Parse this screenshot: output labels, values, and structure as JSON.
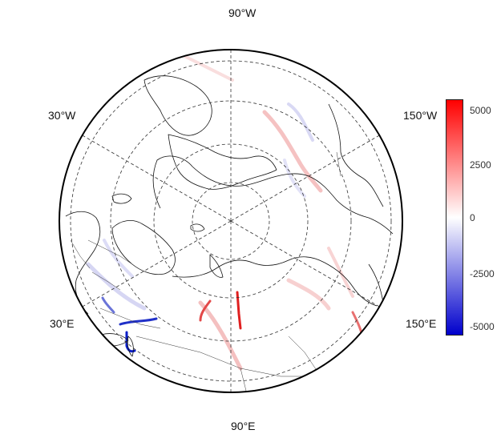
{
  "map": {
    "projection": "polar stereographic (north)",
    "longitude_labels": {
      "top": "90°W",
      "upper_left": "30°W",
      "upper_right": "150°W",
      "lower_left": "30°E",
      "lower_right": "150°E",
      "bottom": "90°E"
    },
    "graticule": "dashed",
    "coastlines": true,
    "country_borders": true
  },
  "colorbar": {
    "min": -5500,
    "max": 5500,
    "ticks": [
      "5000",
      "2500",
      "0",
      "-2500",
      "-5000"
    ],
    "colors": {
      "positive": "#ff0000",
      "zero": "#ffffff",
      "negative": "#0000cc"
    }
  },
  "highlights": {
    "strong_negative_color": "#0a1ec8",
    "strong_positive_color": "#e0222a"
  }
}
